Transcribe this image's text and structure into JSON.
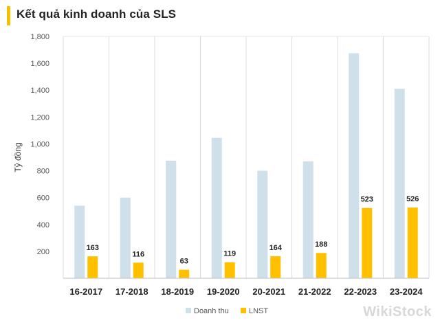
{
  "title": "Kết quả kinh doanh của SLS",
  "watermark": "WikiStock",
  "chart_data": {
    "type": "bar",
    "categories": [
      "16-2017",
      "17-2018",
      "18-2019",
      "19-2020",
      "20-2021",
      "21-2022",
      "22-2023",
      "23-2024"
    ],
    "series": [
      {
        "name": "Doanh thu",
        "values": [
          540,
          600,
          875,
          1045,
          800,
          870,
          1675,
          1410
        ],
        "color": "#cfe0ea",
        "labels": false
      },
      {
        "name": "LNST",
        "values": [
          163,
          116,
          63,
          119,
          164,
          188,
          523,
          526
        ],
        "color": "#ffc000",
        "labels": true
      }
    ],
    "ylabel": "Tỷ đồng",
    "ylim": [
      0,
      1800
    ],
    "yticks": [
      "1,800",
      "1,600",
      "1,400",
      "1,200",
      "1,000",
      "800",
      "600",
      "400",
      "200"
    ],
    "ytick_values": [
      1800,
      1600,
      1400,
      1200,
      1000,
      800,
      600,
      400,
      200
    ],
    "grid": "vertical",
    "legend": "bottom"
  }
}
